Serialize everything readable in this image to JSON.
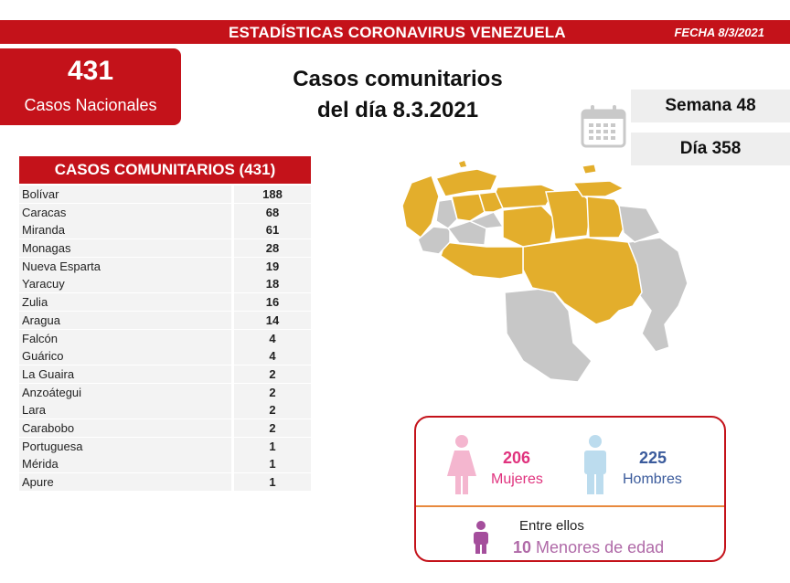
{
  "header": {
    "title": "ESTADÍSTICAS CORONAVIRUS VENEZUELA",
    "date": "FECHA 8/3/2021"
  },
  "national": {
    "count": "431",
    "label": "Casos Nacionales"
  },
  "heading": {
    "line1": "Casos comunitarios",
    "line2": "del día 8.3.2021"
  },
  "calendar_icon": "calendar-icon",
  "week": "Semana 48",
  "day": "Día 358",
  "table": {
    "header": "CASOS COMUNITARIOS (431)",
    "rows": [
      {
        "state": "Bolívar",
        "cases": "188"
      },
      {
        "state": "Caracas",
        "cases": "68"
      },
      {
        "state": "Miranda",
        "cases": "61"
      },
      {
        "state": "Monagas",
        "cases": "28"
      },
      {
        "state": "Nueva Esparta",
        "cases": "19"
      },
      {
        "state": "Yaracuy",
        "cases": "18"
      },
      {
        "state": "Zulia",
        "cases": "16"
      },
      {
        "state": "Aragua",
        "cases": "14"
      },
      {
        "state": "Falcón",
        "cases": "4"
      },
      {
        "state": "Guárico",
        "cases": "4"
      },
      {
        "state": "La Guaira",
        "cases": "2"
      },
      {
        "state": "Anzoátegui",
        "cases": "2"
      },
      {
        "state": "Lara",
        "cases": "2"
      },
      {
        "state": "Carabobo",
        "cases": "2"
      },
      {
        "state": "Portuguesa",
        "cases": "1"
      },
      {
        "state": "Mérida",
        "cases": "1"
      },
      {
        "state": "Apure",
        "cases": "1"
      }
    ]
  },
  "gender": {
    "women_count": "206",
    "women_label": "Mujeres",
    "men_count": "225",
    "men_label": "Hombres",
    "kids_intro": "Entre ellos",
    "kids_count": "10",
    "kids_label": "Menores de edad"
  },
  "colors": {
    "brand_red": "#c4121a",
    "affected_state": "#e3ae2c",
    "unaffected_state": "#c7c7c7",
    "female": "#e0337e",
    "male": "#3b5b9c",
    "minor": "#b06aa8"
  }
}
